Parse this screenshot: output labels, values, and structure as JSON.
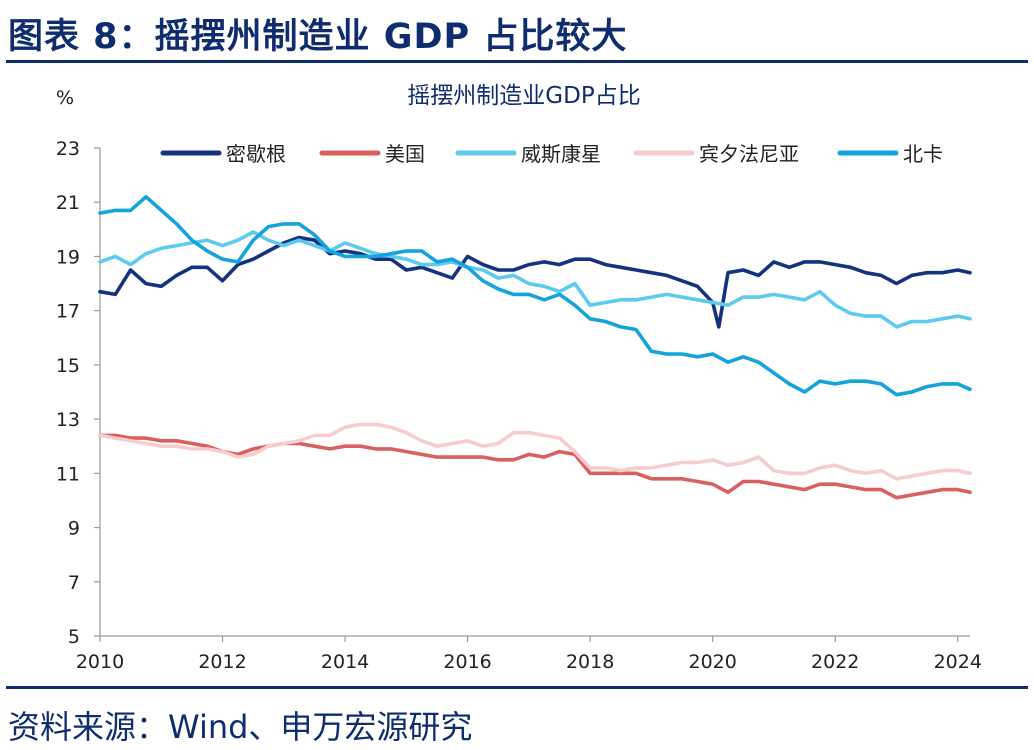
{
  "figure": {
    "heading": "图表 8：摇摆州制造业 GDP 占比较大",
    "source": "资料来源：Wind、申万宏源研究"
  },
  "chart_data": {
    "type": "line",
    "title": "摇摆州制造业GDP占比",
    "unit": "%",
    "xlim": [
      2010,
      2024.2
    ],
    "ylim": [
      5,
      23
    ],
    "xticks": [
      2010,
      2012,
      2014,
      2016,
      2018,
      2020,
      2022,
      2024
    ],
    "yticks": [
      5,
      7,
      9,
      11,
      13,
      15,
      17,
      19,
      21,
      23
    ],
    "grid": false,
    "legend_position": "top",
    "series": [
      {
        "name": "密歇根",
        "color": "#14337e",
        "x": [
          2010,
          2010.25,
          2010.5,
          2010.75,
          2011,
          2011.25,
          2011.5,
          2011.75,
          2012,
          2012.25,
          2012.5,
          2012.75,
          2013,
          2013.25,
          2013.5,
          2013.75,
          2014,
          2014.25,
          2014.5,
          2014.75,
          2015,
          2015.25,
          2015.5,
          2015.75,
          2016,
          2016.25,
          2016.5,
          2016.75,
          2017,
          2017.25,
          2017.5,
          2017.75,
          2018,
          2018.25,
          2018.5,
          2018.75,
          2019,
          2019.25,
          2019.5,
          2019.75,
          2020,
          2020.1,
          2020.25,
          2020.5,
          2020.75,
          2021,
          2021.25,
          2021.5,
          2021.75,
          2022,
          2022.25,
          2022.5,
          2022.75,
          2023,
          2023.25,
          2023.5,
          2023.75,
          2024,
          2024.2
        ],
        "values": [
          17.7,
          17.6,
          18.5,
          18.0,
          17.9,
          18.3,
          18.6,
          18.6,
          18.1,
          18.7,
          18.9,
          19.2,
          19.5,
          19.7,
          19.6,
          19.1,
          19.2,
          19.1,
          18.9,
          18.9,
          18.5,
          18.6,
          18.4,
          18.2,
          19.0,
          18.7,
          18.5,
          18.5,
          18.7,
          18.8,
          18.7,
          18.9,
          18.9,
          18.7,
          18.6,
          18.5,
          18.4,
          18.3,
          18.1,
          17.9,
          17.3,
          16.4,
          18.4,
          18.5,
          18.3,
          18.8,
          18.6,
          18.8,
          18.8,
          18.7,
          18.6,
          18.4,
          18.3,
          18.0,
          18.3,
          18.4,
          18.4,
          18.5,
          18.4
        ]
      },
      {
        "name": "美国",
        "color": "#d9605e",
        "x": [
          2010,
          2010.25,
          2010.5,
          2010.75,
          2011,
          2011.25,
          2011.5,
          2011.75,
          2012,
          2012.25,
          2012.5,
          2012.75,
          2013,
          2013.25,
          2013.5,
          2013.75,
          2014,
          2014.25,
          2014.5,
          2014.75,
          2015,
          2015.25,
          2015.5,
          2015.75,
          2016,
          2016.25,
          2016.5,
          2016.75,
          2017,
          2017.25,
          2017.5,
          2017.75,
          2018,
          2018.25,
          2018.5,
          2018.75,
          2019,
          2019.25,
          2019.5,
          2019.75,
          2020,
          2020.25,
          2020.5,
          2020.75,
          2021,
          2021.25,
          2021.5,
          2021.75,
          2022,
          2022.25,
          2022.5,
          2022.75,
          2023,
          2023.25,
          2023.5,
          2023.75,
          2024,
          2024.2
        ],
        "values": [
          12.4,
          12.4,
          12.3,
          12.3,
          12.2,
          12.2,
          12.1,
          12.0,
          11.8,
          11.7,
          11.9,
          12.0,
          12.1,
          12.1,
          12.0,
          11.9,
          12.0,
          12.0,
          11.9,
          11.9,
          11.8,
          11.7,
          11.6,
          11.6,
          11.6,
          11.6,
          11.5,
          11.5,
          11.7,
          11.6,
          11.8,
          11.7,
          11.0,
          11.0,
          11.0,
          11.0,
          10.8,
          10.8,
          10.8,
          10.7,
          10.6,
          10.3,
          10.7,
          10.7,
          10.6,
          10.5,
          10.4,
          10.6,
          10.6,
          10.5,
          10.4,
          10.4,
          10.1,
          10.2,
          10.3,
          10.4,
          10.4,
          10.3
        ]
      },
      {
        "name": "威斯康星",
        "color": "#5ccbee",
        "x": [
          2010,
          2010.25,
          2010.5,
          2010.75,
          2011,
          2011.25,
          2011.5,
          2011.75,
          2012,
          2012.25,
          2012.5,
          2012.75,
          2013,
          2013.25,
          2013.5,
          2013.75,
          2014,
          2014.25,
          2014.5,
          2014.75,
          2015,
          2015.25,
          2015.5,
          2015.75,
          2016,
          2016.25,
          2016.5,
          2016.75,
          2017,
          2017.25,
          2017.5,
          2017.75,
          2018,
          2018.25,
          2018.5,
          2018.75,
          2019,
          2019.25,
          2019.5,
          2019.75,
          2020,
          2020.25,
          2020.5,
          2020.75,
          2021,
          2021.25,
          2021.5,
          2021.75,
          2022,
          2022.25,
          2022.5,
          2022.75,
          2023,
          2023.25,
          2023.5,
          2023.75,
          2024,
          2024.2
        ],
        "values": [
          18.8,
          19.0,
          18.7,
          19.1,
          19.3,
          19.4,
          19.5,
          19.6,
          19.4,
          19.6,
          19.9,
          19.6,
          19.4,
          19.6,
          19.4,
          19.2,
          19.5,
          19.3,
          19.1,
          19.0,
          18.9,
          18.7,
          18.7,
          18.8,
          18.6,
          18.5,
          18.2,
          18.3,
          18.0,
          17.9,
          17.7,
          18.0,
          17.2,
          17.3,
          17.4,
          17.4,
          17.5,
          17.6,
          17.5,
          17.4,
          17.3,
          17.2,
          17.5,
          17.5,
          17.6,
          17.5,
          17.4,
          17.7,
          17.2,
          16.9,
          16.8,
          16.8,
          16.4,
          16.6,
          16.6,
          16.7,
          16.8,
          16.7
        ]
      },
      {
        "name": "宾夕法尼亚",
        "color": "#f8cccf",
        "x": [
          2010,
          2010.25,
          2010.5,
          2010.75,
          2011,
          2011.25,
          2011.5,
          2011.75,
          2012,
          2012.25,
          2012.5,
          2012.75,
          2013,
          2013.25,
          2013.5,
          2013.75,
          2014,
          2014.25,
          2014.5,
          2014.75,
          2015,
          2015.25,
          2015.5,
          2015.75,
          2016,
          2016.25,
          2016.5,
          2016.75,
          2017,
          2017.25,
          2017.5,
          2017.75,
          2018,
          2018.25,
          2018.5,
          2018.75,
          2019,
          2019.25,
          2019.5,
          2019.75,
          2020,
          2020.25,
          2020.5,
          2020.75,
          2021,
          2021.25,
          2021.5,
          2021.75,
          2022,
          2022.25,
          2022.5,
          2022.75,
          2023,
          2023.25,
          2023.5,
          2023.75,
          2024,
          2024.2
        ],
        "values": [
          12.4,
          12.3,
          12.2,
          12.1,
          12.0,
          12.0,
          11.9,
          11.9,
          11.8,
          11.6,
          11.7,
          12.0,
          12.1,
          12.2,
          12.4,
          12.4,
          12.7,
          12.8,
          12.8,
          12.7,
          12.5,
          12.2,
          12.0,
          12.1,
          12.2,
          12.0,
          12.1,
          12.5,
          12.5,
          12.4,
          12.3,
          11.8,
          11.2,
          11.2,
          11.1,
          11.2,
          11.2,
          11.3,
          11.4,
          11.4,
          11.5,
          11.3,
          11.4,
          11.6,
          11.1,
          11.0,
          11.0,
          11.2,
          11.3,
          11.1,
          11.0,
          11.1,
          10.8,
          10.9,
          11.0,
          11.1,
          11.1,
          11.0
        ]
      },
      {
        "name": "北卡",
        "color": "#14a3db",
        "x": [
          2010,
          2010.25,
          2010.5,
          2010.75,
          2011,
          2011.25,
          2011.5,
          2011.75,
          2012,
          2012.25,
          2012.5,
          2012.75,
          2013,
          2013.25,
          2013.5,
          2013.75,
          2014,
          2014.25,
          2014.5,
          2014.75,
          2015,
          2015.25,
          2015.5,
          2015.75,
          2016,
          2016.25,
          2016.5,
          2016.75,
          2017,
          2017.25,
          2017.5,
          2017.75,
          2018,
          2018.25,
          2018.5,
          2018.75,
          2019,
          2019.25,
          2019.5,
          2019.75,
          2020,
          2020.25,
          2020.5,
          2020.75,
          2021,
          2021.25,
          2021.5,
          2021.75,
          2022,
          2022.25,
          2022.5,
          2022.75,
          2023,
          2023.25,
          2023.5,
          2023.75,
          2024,
          2024.2
        ],
        "values": [
          20.6,
          20.7,
          20.7,
          21.2,
          20.7,
          20.2,
          19.6,
          19.2,
          18.9,
          18.8,
          19.6,
          20.1,
          20.2,
          20.2,
          19.8,
          19.2,
          19.0,
          19.0,
          19.0,
          19.1,
          19.2,
          19.2,
          18.8,
          18.9,
          18.6,
          18.1,
          17.8,
          17.6,
          17.6,
          17.4,
          17.6,
          17.2,
          16.7,
          16.6,
          16.4,
          16.3,
          15.5,
          15.4,
          15.4,
          15.3,
          15.4,
          15.1,
          15.3,
          15.1,
          14.7,
          14.3,
          14.0,
          14.4,
          14.3,
          14.4,
          14.4,
          14.3,
          13.9,
          14.0,
          14.2,
          14.3,
          14.3,
          14.1
        ]
      }
    ]
  }
}
